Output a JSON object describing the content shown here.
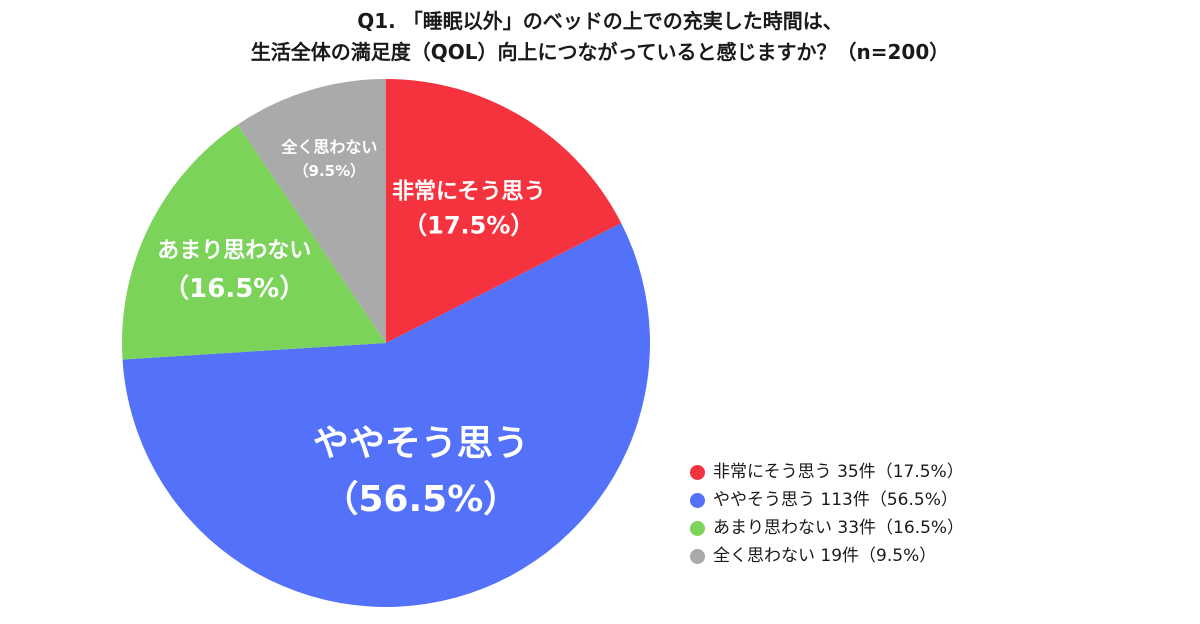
{
  "chart_data": {
    "type": "pie",
    "title_lines": [
      "Q1. 「睡眠以外」のベッドの上での充実した時間は、",
      "生活全体の満足度（QOL）向上につながっていると感じますか？（n=200）"
    ],
    "slices": [
      {
        "name": "非常にそう思う",
        "value": 35,
        "percent": 17.5,
        "pct_label": "（17.5%）",
        "legend": "非常にそう思う 35件（17.5%）",
        "color": "#f5333f"
      },
      {
        "name": "ややそう思う",
        "value": 113,
        "percent": 56.5,
        "pct_label": "（56.5%）",
        "legend": "ややそう思う 113件（56.5%）",
        "color": "#5371f9"
      },
      {
        "name": "あまり思わない",
        "value": 33,
        "percent": 16.5,
        "pct_label": "（16.5%）",
        "legend": "あまり思わない 33件（16.5%）",
        "color": "#7cd35a"
      },
      {
        "name": "全く思わない",
        "value": 19,
        "percent": 9.5,
        "pct_label": "（9.5%）",
        "legend": "全く思わない 19件（9.5%）",
        "color": "#aaaaaa"
      }
    ],
    "legend_position": "bottom-right",
    "start_angle": "12 o'clock",
    "direction": "clockwise"
  }
}
